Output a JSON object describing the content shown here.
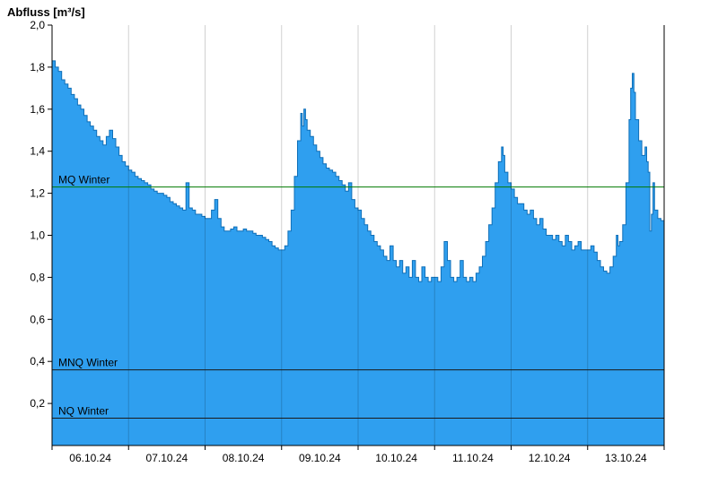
{
  "chart_data": {
    "type": "area",
    "title": "Abfluss [m³/s]",
    "xlabel": "",
    "ylabel": "Abfluss [m³/s]",
    "unit": "m³/s",
    "ylim": [
      0,
      2.0
    ],
    "grid": "vertical-day-boundaries",
    "legend_position": "none",
    "x_domain_hours": [
      0,
      192
    ],
    "yticks": [
      {
        "value": 2.0,
        "label": "2,0"
      },
      {
        "value": 1.8,
        "label": "1,8"
      },
      {
        "value": 1.6,
        "label": "1,6"
      },
      {
        "value": 1.4,
        "label": "1,4"
      },
      {
        "value": 1.2,
        "label": "1,2"
      },
      {
        "value": 1.0,
        "label": "1,0"
      },
      {
        "value": 0.8,
        "label": "0,8"
      },
      {
        "value": 0.6,
        "label": "0,6"
      },
      {
        "value": 0.4,
        "label": "0,4"
      },
      {
        "value": 0.2,
        "label": "0,2"
      }
    ],
    "xticks": [
      "06.10.24",
      "07.10.24",
      "08.10.24",
      "09.10.24",
      "10.10.24",
      "11.10.24",
      "12.10.24",
      "13.10.24"
    ],
    "reference_lines": [
      {
        "name": "mq-winter",
        "label": "MQ Winter",
        "value": 1.23,
        "color": "#007a00"
      },
      {
        "name": "mnq-winter",
        "label": "MNQ Winter",
        "value": 0.36,
        "color": "#1a1a1a"
      },
      {
        "name": "nq-winter",
        "label": "NQ Winter",
        "value": 0.13,
        "color": "#1a1a1a"
      }
    ],
    "series": [
      {
        "name": "Abfluss",
        "unit": "m³/s",
        "x_unit": "hours since 06.10.24 00:00",
        "points": [
          [
            0,
            1.83
          ],
          [
            1,
            1.8
          ],
          [
            2,
            1.78
          ],
          [
            3,
            1.74
          ],
          [
            4,
            1.72
          ],
          [
            5,
            1.7
          ],
          [
            6,
            1.67
          ],
          [
            7,
            1.65
          ],
          [
            8,
            1.62
          ],
          [
            9,
            1.6
          ],
          [
            10,
            1.57
          ],
          [
            11,
            1.54
          ],
          [
            12,
            1.52
          ],
          [
            13,
            1.5
          ],
          [
            14,
            1.47
          ],
          [
            15,
            1.45
          ],
          [
            16,
            1.43
          ],
          [
            17,
            1.47
          ],
          [
            18,
            1.5
          ],
          [
            19,
            1.46
          ],
          [
            20,
            1.42
          ],
          [
            21,
            1.38
          ],
          [
            22,
            1.35
          ],
          [
            23,
            1.33
          ],
          [
            24,
            1.31
          ],
          [
            25,
            1.3
          ],
          [
            26,
            1.28
          ],
          [
            27,
            1.27
          ],
          [
            28,
            1.26
          ],
          [
            29,
            1.25
          ],
          [
            30,
            1.24
          ],
          [
            31,
            1.22
          ],
          [
            32,
            1.21
          ],
          [
            33,
            1.2
          ],
          [
            34,
            1.2
          ],
          [
            35,
            1.19
          ],
          [
            36,
            1.18
          ],
          [
            37,
            1.16
          ],
          [
            38,
            1.15
          ],
          [
            39,
            1.14
          ],
          [
            40,
            1.13
          ],
          [
            41,
            1.12
          ],
          [
            42,
            1.25
          ],
          [
            43,
            1.13
          ],
          [
            44,
            1.12
          ],
          [
            45,
            1.1
          ],
          [
            46,
            1.1
          ],
          [
            47,
            1.09
          ],
          [
            48,
            1.08
          ],
          [
            49,
            1.08
          ],
          [
            50,
            1.12
          ],
          [
            51,
            1.17
          ],
          [
            52,
            1.08
          ],
          [
            53,
            1.04
          ],
          [
            54,
            1.02
          ],
          [
            55,
            1.02
          ],
          [
            56,
            1.03
          ],
          [
            57,
            1.04
          ],
          [
            58,
            1.02
          ],
          [
            59,
            1.02
          ],
          [
            60,
            1.03
          ],
          [
            61,
            1.02
          ],
          [
            62,
            1.02
          ],
          [
            63,
            1.01
          ],
          [
            64,
            1.0
          ],
          [
            65,
            1.0
          ],
          [
            66,
            0.99
          ],
          [
            67,
            0.98
          ],
          [
            68,
            0.97
          ],
          [
            69,
            0.95
          ],
          [
            70,
            0.94
          ],
          [
            71,
            0.93
          ],
          [
            72,
            0.93
          ],
          [
            73,
            0.95
          ],
          [
            74,
            1.02
          ],
          [
            75,
            1.12
          ],
          [
            76,
            1.28
          ],
          [
            77,
            1.45
          ],
          [
            78,
            1.58
          ],
          [
            78.5,
            1.52
          ],
          [
            79,
            1.6
          ],
          [
            79.5,
            1.55
          ],
          [
            80,
            1.5
          ],
          [
            81,
            1.47
          ],
          [
            82,
            1.43
          ],
          [
            83,
            1.4
          ],
          [
            84,
            1.37
          ],
          [
            85,
            1.34
          ],
          [
            86,
            1.32
          ],
          [
            87,
            1.31
          ],
          [
            88,
            1.3
          ],
          [
            89,
            1.28
          ],
          [
            90,
            1.26
          ],
          [
            91,
            1.24
          ],
          [
            92,
            1.21
          ],
          [
            93,
            1.25
          ],
          [
            94,
            1.17
          ],
          [
            95,
            1.13
          ],
          [
            96,
            1.12
          ],
          [
            97,
            1.08
          ],
          [
            98,
            1.05
          ],
          [
            99,
            1.02
          ],
          [
            100,
            1.0
          ],
          [
            101,
            0.97
          ],
          [
            102,
            0.95
          ],
          [
            103,
            0.93
          ],
          [
            104,
            0.9
          ],
          [
            105,
            0.88
          ],
          [
            106,
            0.95
          ],
          [
            107,
            0.88
          ],
          [
            108,
            0.85
          ],
          [
            109,
            0.88
          ],
          [
            110,
            0.82
          ],
          [
            111,
            0.85
          ],
          [
            112,
            0.8
          ],
          [
            113,
            0.88
          ],
          [
            114,
            0.8
          ],
          [
            115,
            0.78
          ],
          [
            116,
            0.85
          ],
          [
            117,
            0.8
          ],
          [
            118,
            0.78
          ],
          [
            119,
            0.8
          ],
          [
            120,
            0.8
          ],
          [
            121,
            0.78
          ],
          [
            122,
            0.85
          ],
          [
            123,
            0.97
          ],
          [
            124,
            0.88
          ],
          [
            125,
            0.8
          ],
          [
            126,
            0.78
          ],
          [
            127,
            0.8
          ],
          [
            128,
            0.88
          ],
          [
            129,
            0.8
          ],
          [
            130,
            0.78
          ],
          [
            131,
            0.8
          ],
          [
            132,
            0.78
          ],
          [
            133,
            0.82
          ],
          [
            134,
            0.85
          ],
          [
            135,
            0.9
          ],
          [
            136,
            0.97
          ],
          [
            137,
            1.05
          ],
          [
            138,
            1.13
          ],
          [
            139,
            1.25
          ],
          [
            140,
            1.35
          ],
          [
            141,
            1.42
          ],
          [
            141.5,
            1.38
          ],
          [
            142,
            1.3
          ],
          [
            143,
            1.25
          ],
          [
            144,
            1.22
          ],
          [
            145,
            1.18
          ],
          [
            146,
            1.15
          ],
          [
            147,
            1.15
          ],
          [
            148,
            1.12
          ],
          [
            149,
            1.1
          ],
          [
            150,
            1.12
          ],
          [
            151,
            1.08
          ],
          [
            152,
            1.05
          ],
          [
            153,
            1.08
          ],
          [
            154,
            1.03
          ],
          [
            155,
            1.0
          ],
          [
            156,
            1.0
          ],
          [
            157,
            0.98
          ],
          [
            158,
            1.0
          ],
          [
            159,
            0.97
          ],
          [
            160,
            0.95
          ],
          [
            161,
            1.0
          ],
          [
            162,
            0.97
          ],
          [
            163,
            0.93
          ],
          [
            164,
            0.95
          ],
          [
            165,
            0.97
          ],
          [
            166,
            0.93
          ],
          [
            167,
            0.93
          ],
          [
            168,
            0.93
          ],
          [
            169,
            0.95
          ],
          [
            170,
            0.92
          ],
          [
            171,
            0.88
          ],
          [
            172,
            0.85
          ],
          [
            173,
            0.83
          ],
          [
            174,
            0.82
          ],
          [
            175,
            0.85
          ],
          [
            176,
            0.9
          ],
          [
            177,
            1.0
          ],
          [
            177.5,
            0.95
          ],
          [
            178,
            0.97
          ],
          [
            179,
            1.05
          ],
          [
            180,
            1.25
          ],
          [
            181,
            1.55
          ],
          [
            181.5,
            1.7
          ],
          [
            182,
            1.77
          ],
          [
            182.5,
            1.68
          ],
          [
            183,
            1.55
          ],
          [
            184,
            1.45
          ],
          [
            185,
            1.38
          ],
          [
            186,
            1.42
          ],
          [
            186.5,
            1.35
          ],
          [
            187,
            1.3
          ],
          [
            187.5,
            1.02
          ],
          [
            188,
            1.1
          ],
          [
            188.5,
            1.25
          ],
          [
            189,
            1.12
          ],
          [
            190,
            1.08
          ],
          [
            191,
            1.07
          ],
          [
            192,
            1.08
          ]
        ]
      }
    ],
    "colors": {
      "area_fill": "#2F9FEF",
      "area_stroke": "#0F6FB8",
      "grid": "rgba(0,0,0,0.18)",
      "axis": "#000000",
      "text": "#000000"
    }
  }
}
